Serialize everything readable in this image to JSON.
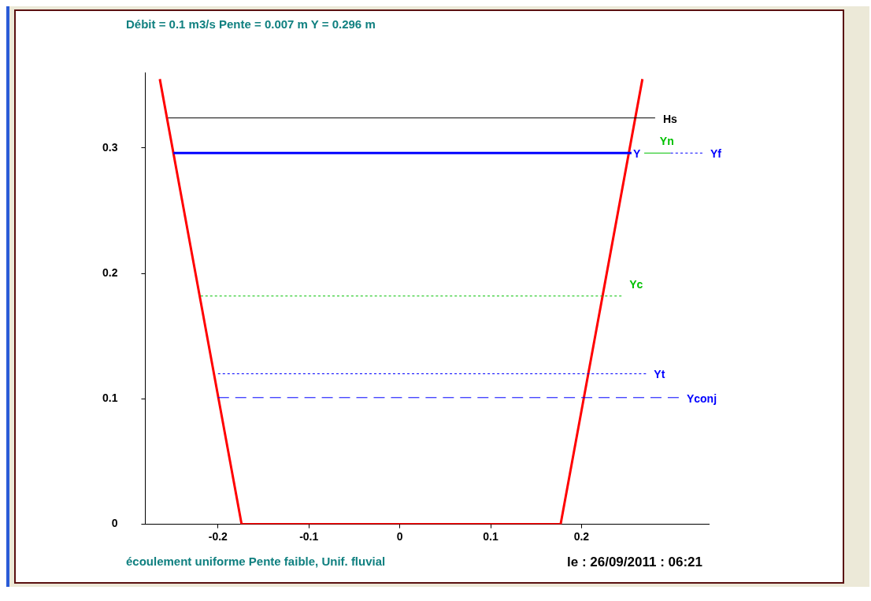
{
  "chart_data": {
    "type": "line",
    "title": "Débit = 0.1 m3/s Pente = 0.007 m Y = 0.296 m",
    "annotations": [
      "écoulement uniforme Pente faible, Unif. fluvial",
      "le : 26/09/2011 : 06:21"
    ],
    "xlim": [
      -0.28,
      0.34
    ],
    "xticks": [
      -0.2,
      -0.1,
      0,
      0.1,
      0.2
    ],
    "ylim": [
      0,
      0.36
    ],
    "yticks": [
      0,
      0.1,
      0.2,
      0.3
    ],
    "marker": "none",
    "series": [
      {
        "color": "#ff0000",
        "x": [
          -0.264,
          -0.174,
          0.177,
          0.267
        ],
        "values": [
          0.355,
          0,
          0,
          0.355
        ],
        "line_style": "solid"
      },
      {
        "name": "Hs",
        "color": "#000000",
        "x": [
          -0.255,
          0.281
        ],
        "values": [
          0.324,
          0.324
        ],
        "line_style": "solid"
      },
      {
        "name": "Y",
        "color": "#0000ff",
        "x": [
          -0.249,
          0.255
        ],
        "values": [
          0.296,
          0.296
        ],
        "line_style": "solid"
      },
      {
        "name": "Yn",
        "color": "#00c000",
        "x": [
          0.269,
          0.298
        ],
        "values": [
          0.296,
          0.296
        ],
        "line_style": "solid"
      },
      {
        "name": "Yf",
        "color": "#0000ff",
        "x": [
          0.298,
          0.333
        ],
        "values": [
          0.296,
          0.296
        ],
        "line_style": "dotted"
      },
      {
        "name": "Yc",
        "color": "#00c000",
        "x": [
          -0.219,
          0.244
        ],
        "values": [
          0.182,
          0.182
        ],
        "line_style": "dotted"
      },
      {
        "name": "Yt",
        "color": "#0000ff",
        "x": [
          -0.2,
          0.271
        ],
        "values": [
          0.12,
          0.12
        ],
        "line_style": "dotted"
      },
      {
        "name": "Yconj",
        "color": "#0000ff",
        "x": [
          -0.2,
          0.307
        ],
        "values": [
          0.101,
          0.101
        ],
        "line_style": "dashed"
      }
    ]
  }
}
